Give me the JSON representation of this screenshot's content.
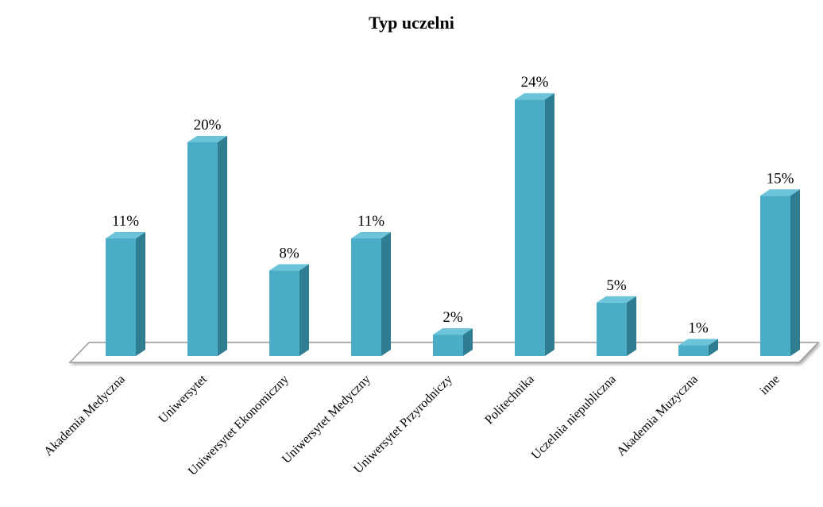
{
  "chart_data": {
    "type": "bar",
    "title": "Typ uczelni",
    "categories": [
      "Akademia Medyczna",
      "Uniwersytet",
      "Uniwersytet Ekonomiczny",
      "Uniwersytet Medyczny",
      "Uniwersytet Przyrodniczy",
      "Politechnika",
      "Uczelnia niepubliczna",
      "Akademia Muzyczna",
      "inne"
    ],
    "values": [
      11,
      20,
      8,
      11,
      2,
      24,
      5,
      1,
      15
    ],
    "data_labels": [
      "11%",
      "20%",
      "8%",
      "11%",
      "2%",
      "24%",
      "5%",
      "1%",
      "15%"
    ],
    "unit": "%",
    "ylim": [
      0,
      25
    ],
    "grid": false,
    "legend": "none",
    "style": "3d-column",
    "colors": {
      "bar_front": "#4BACC6",
      "bar_top": "#6CC4DA",
      "bar_side": "#2F7D91",
      "floor": "#ffffff",
      "floor_edge": "#9a9a9a"
    }
  }
}
